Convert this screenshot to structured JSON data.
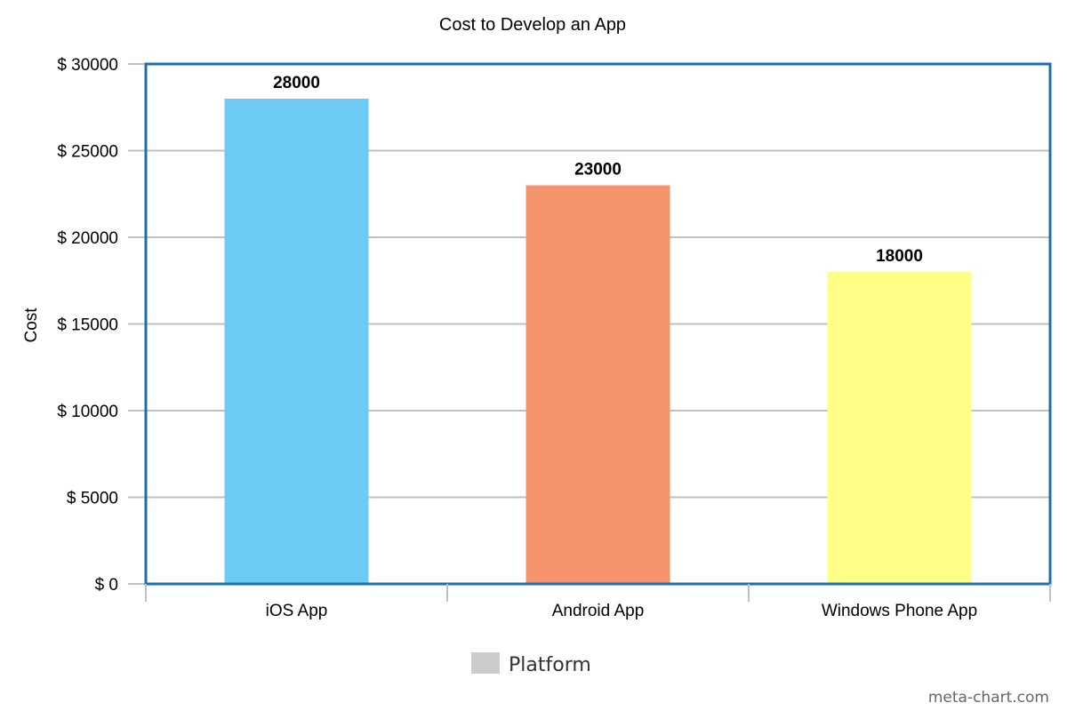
{
  "chart_data": {
    "type": "bar",
    "title": "Cost to Develop an App",
    "xlabel": "",
    "ylabel": "Cost",
    "categories": [
      "iOS App",
      "Android App",
      "Windows Phone App"
    ],
    "series": [
      {
        "name": "Platform",
        "values": [
          28000,
          23000,
          18000
        ],
        "colors": [
          "#6ecbf5",
          "#f5946c",
          "#ffff88"
        ]
      }
    ],
    "data_labels": [
      "28000",
      "23000",
      "18000"
    ],
    "ylim": [
      0,
      30000
    ],
    "y_ticks": [
      0,
      5000,
      10000,
      15000,
      20000,
      25000,
      30000
    ],
    "y_tick_labels": [
      "$ 0",
      "$ 5000",
      "$ 10000",
      "$ 15000",
      "$ 20000",
      "$ 25000",
      "$ 30000"
    ],
    "grid": true,
    "legend": {
      "position": "bottom-center",
      "entries": [
        {
          "label": "Platform",
          "color": "#cccccc"
        }
      ]
    },
    "frame_color": "#1a6faf",
    "grid_color": "#c0c0c0"
  },
  "watermark": "meta-chart.com"
}
